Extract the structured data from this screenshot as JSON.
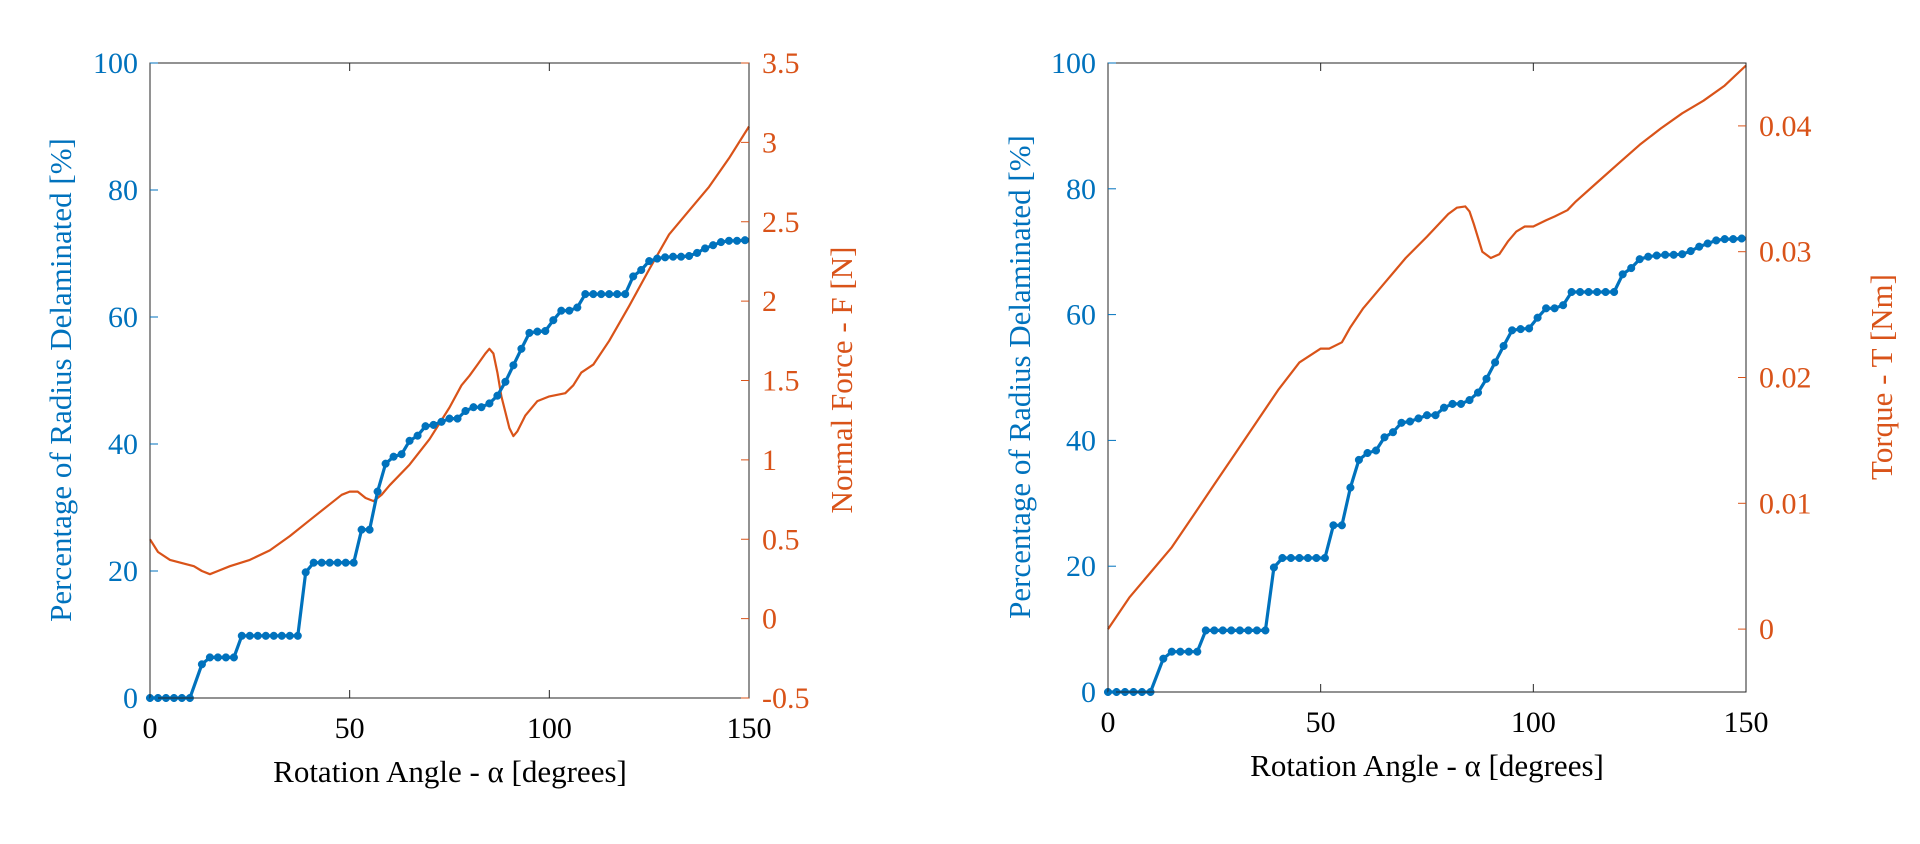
{
  "colors": {
    "blue": "#0072BD",
    "orange": "#D95319",
    "axis": "#262626"
  },
  "chart_data": [
    {
      "type": "line",
      "xlabel": "Rotation Angle - α [degrees]",
      "ylabel_left": "Percentage of Radius Delaminated [%]",
      "ylabel_right": "Normal Force - F [N]",
      "xlim": [
        0,
        150
      ],
      "ylim_left": [
        0,
        100
      ],
      "ylim_right": [
        -0.5,
        3.5
      ],
      "xticks": [
        0,
        50,
        100,
        150
      ],
      "yticks_left": [
        0,
        20,
        40,
        60,
        80,
        100
      ],
      "yticks_right": [
        -0.5,
        0,
        0.5,
        1,
        1.5,
        2,
        2.5,
        3,
        3.5
      ],
      "ytick_labels_right": [
        "-0.5",
        "0",
        "0.5",
        "1",
        "1.5",
        "2",
        "2.5",
        "3",
        "3.5"
      ],
      "grid": false,
      "series": [
        {
          "axis": "left",
          "marker": "dot",
          "x": [
            0,
            2,
            4,
            6,
            8,
            10,
            13,
            15,
            17,
            19,
            21,
            23,
            25,
            27,
            29,
            31,
            33,
            35,
            37,
            39,
            41,
            43,
            45,
            47,
            49,
            51,
            53,
            55,
            57,
            59,
            61,
            63,
            65,
            67,
            69,
            71,
            73,
            75,
            77,
            79,
            81,
            83,
            85,
            87,
            89,
            91,
            93,
            95,
            97,
            99,
            101,
            103,
            105,
            107,
            109,
            111,
            113,
            115,
            117,
            119,
            121,
            123,
            125,
            127,
            129,
            131,
            133,
            135,
            137,
            139,
            141,
            143,
            145,
            147,
            149
          ],
          "values": [
            0,
            0,
            0,
            0,
            0,
            0,
            5.3,
            6.4,
            6.4,
            6.4,
            6.4,
            9.8,
            9.8,
            9.8,
            9.8,
            9.8,
            9.8,
            9.8,
            9.8,
            19.8,
            21.3,
            21.3,
            21.3,
            21.3,
            21.3,
            21.3,
            26.5,
            26.5,
            32.5,
            36.9,
            38,
            38.4,
            40.5,
            41.3,
            42.8,
            43,
            43.5,
            44,
            44,
            45.2,
            45.8,
            45.8,
            46.4,
            47.6,
            49.8,
            52.4,
            55,
            57.5,
            57.7,
            57.8,
            59.5,
            61,
            61,
            61.5,
            63.6,
            63.6,
            63.6,
            63.6,
            63.6,
            63.6,
            66.4,
            67.4,
            68.8,
            69.2,
            69.4,
            69.5,
            69.5,
            69.6,
            70.1,
            70.8,
            71.3,
            71.8,
            72,
            72,
            72.1
          ]
        },
        {
          "axis": "right",
          "marker": "none",
          "x": [
            0,
            2,
            5,
            8,
            11,
            13,
            15,
            17,
            20,
            25,
            30,
            35,
            40,
            45,
            48,
            50,
            52,
            54,
            56,
            58,
            60,
            65,
            70,
            75,
            78,
            80,
            82,
            84,
            85,
            86,
            87,
            88,
            90,
            91,
            92,
            94,
            97,
            100,
            104,
            106,
            108,
            111,
            115,
            120,
            125,
            130,
            135,
            140,
            145,
            150
          ],
          "values": [
            0.5,
            0.42,
            0.37,
            0.35,
            0.33,
            0.3,
            0.28,
            0.3,
            0.33,
            0.37,
            0.43,
            0.52,
            0.62,
            0.72,
            0.78,
            0.8,
            0.8,
            0.76,
            0.74,
            0.78,
            0.84,
            0.97,
            1.13,
            1.33,
            1.47,
            1.53,
            1.6,
            1.67,
            1.7,
            1.67,
            1.55,
            1.4,
            1.2,
            1.15,
            1.18,
            1.28,
            1.37,
            1.4,
            1.42,
            1.47,
            1.55,
            1.6,
            1.75,
            1.97,
            2.2,
            2.42,
            2.57,
            2.72,
            2.9,
            3.1
          ]
        }
      ]
    },
    {
      "type": "line",
      "xlabel": "Rotation Angle - α [degrees]",
      "ylabel_left": "Percentage of Radius Delaminated [%]",
      "ylabel_right": "Torque - T [Nm]",
      "xlim": [
        0,
        150
      ],
      "ylim_left": [
        0,
        100
      ],
      "ylim_right": [
        -0.005,
        0.045
      ],
      "xticks": [
        0,
        50,
        100,
        150
      ],
      "yticks_left": [
        0,
        20,
        40,
        60,
        80,
        100
      ],
      "yticks_right": [
        0,
        0.01,
        0.02,
        0.03,
        0.04
      ],
      "ytick_labels_right": [
        "0",
        "0.01",
        "0.02",
        "0.03",
        "0.04"
      ],
      "grid": false,
      "series": [
        {
          "axis": "left",
          "marker": "dot",
          "x": [
            0,
            2,
            4,
            6,
            8,
            10,
            13,
            15,
            17,
            19,
            21,
            23,
            25,
            27,
            29,
            31,
            33,
            35,
            37,
            39,
            41,
            43,
            45,
            47,
            49,
            51,
            53,
            55,
            57,
            59,
            61,
            63,
            65,
            67,
            69,
            71,
            73,
            75,
            77,
            79,
            81,
            83,
            85,
            87,
            89,
            91,
            93,
            95,
            97,
            99,
            101,
            103,
            105,
            107,
            109,
            111,
            113,
            115,
            117,
            119,
            121,
            123,
            125,
            127,
            129,
            131,
            133,
            135,
            137,
            139,
            141,
            143,
            145,
            147,
            149
          ],
          "values": [
            0,
            0,
            0,
            0,
            0,
            0,
            5.3,
            6.4,
            6.4,
            6.4,
            6.4,
            9.8,
            9.8,
            9.8,
            9.8,
            9.8,
            9.8,
            9.8,
            9.8,
            19.8,
            21.3,
            21.3,
            21.3,
            21.3,
            21.3,
            21.3,
            26.5,
            26.5,
            32.5,
            36.9,
            38,
            38.4,
            40.5,
            41.3,
            42.8,
            43,
            43.5,
            44,
            44,
            45.2,
            45.8,
            45.8,
            46.4,
            47.6,
            49.8,
            52.4,
            55,
            57.5,
            57.7,
            57.8,
            59.5,
            61,
            61,
            61.5,
            63.6,
            63.6,
            63.6,
            63.6,
            63.6,
            63.6,
            66.4,
            67.4,
            68.8,
            69.2,
            69.4,
            69.5,
            69.5,
            69.6,
            70.1,
            70.8,
            71.3,
            71.8,
            72,
            72,
            72.1
          ]
        },
        {
          "axis": "right",
          "marker": "none",
          "x": [
            0,
            5,
            10,
            15,
            20,
            25,
            30,
            35,
            40,
            45,
            50,
            52,
            55,
            57,
            60,
            65,
            70,
            75,
            80,
            82,
            84,
            85,
            86,
            88,
            90,
            92,
            94,
            96,
            98,
            100,
            103,
            105,
            108,
            110,
            115,
            120,
            125,
            130,
            135,
            140,
            145,
            150
          ],
          "values": [
            0,
            0.0025,
            0.0045,
            0.0065,
            0.009,
            0.0115,
            0.014,
            0.0165,
            0.019,
            0.0212,
            0.0223,
            0.0223,
            0.0228,
            0.024,
            0.0255,
            0.0275,
            0.0295,
            0.0312,
            0.033,
            0.0335,
            0.0336,
            0.0332,
            0.0322,
            0.03,
            0.0295,
            0.0298,
            0.0308,
            0.0316,
            0.032,
            0.032,
            0.0325,
            0.0328,
            0.0333,
            0.034,
            0.0355,
            0.037,
            0.0385,
            0.0398,
            0.041,
            0.042,
            0.0432,
            0.0448
          ]
        }
      ]
    }
  ]
}
